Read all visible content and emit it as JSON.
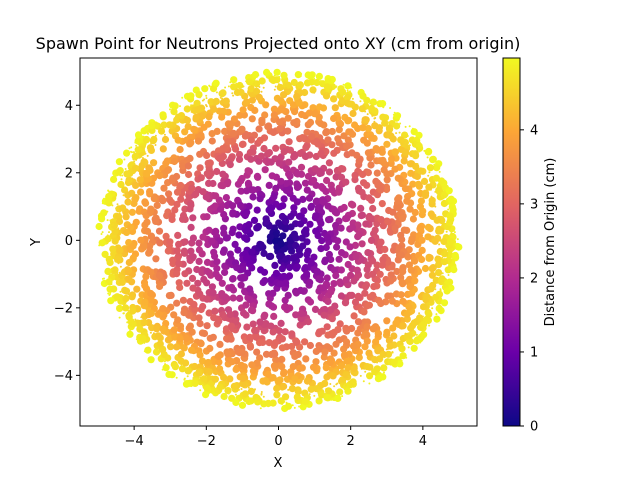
{
  "chart_data": {
    "type": "scatter",
    "title": "Spawn Point for Neutrons Projected onto XY (cm from origin)",
    "xlabel": "X",
    "ylabel": "Y",
    "xlim": [
      -5.5,
      5.5
    ],
    "ylim": [
      -5.5,
      5.4
    ],
    "x_ticks": [
      -4,
      -2,
      0,
      2,
      4
    ],
    "y_ticks": [
      -4,
      -2,
      0,
      2,
      4
    ],
    "x_tick_labels": [
      "−4",
      "−2",
      "0",
      "2",
      "4"
    ],
    "y_tick_labels": [
      "−4",
      "−2",
      "0",
      "2",
      "4"
    ],
    "grid": false,
    "distribution": {
      "shape": "disk",
      "center": [
        0,
        0
      ],
      "max_radius": 5.0,
      "density": "sparser near edge, densest at center",
      "color_value": "distance from origin"
    },
    "colorbar": {
      "label": "Distance from Origin (cm)",
      "colormap": "plasma",
      "range": [
        0,
        4.97
      ],
      "ticks": [
        0,
        1,
        2,
        3,
        4
      ],
      "tick_labels": [
        "0",
        "1",
        "2",
        "3",
        "4"
      ],
      "colors": [
        "#0d0887",
        "#6a00a8",
        "#b12a90",
        "#e16462",
        "#fca636",
        "#f0f921"
      ]
    }
  }
}
